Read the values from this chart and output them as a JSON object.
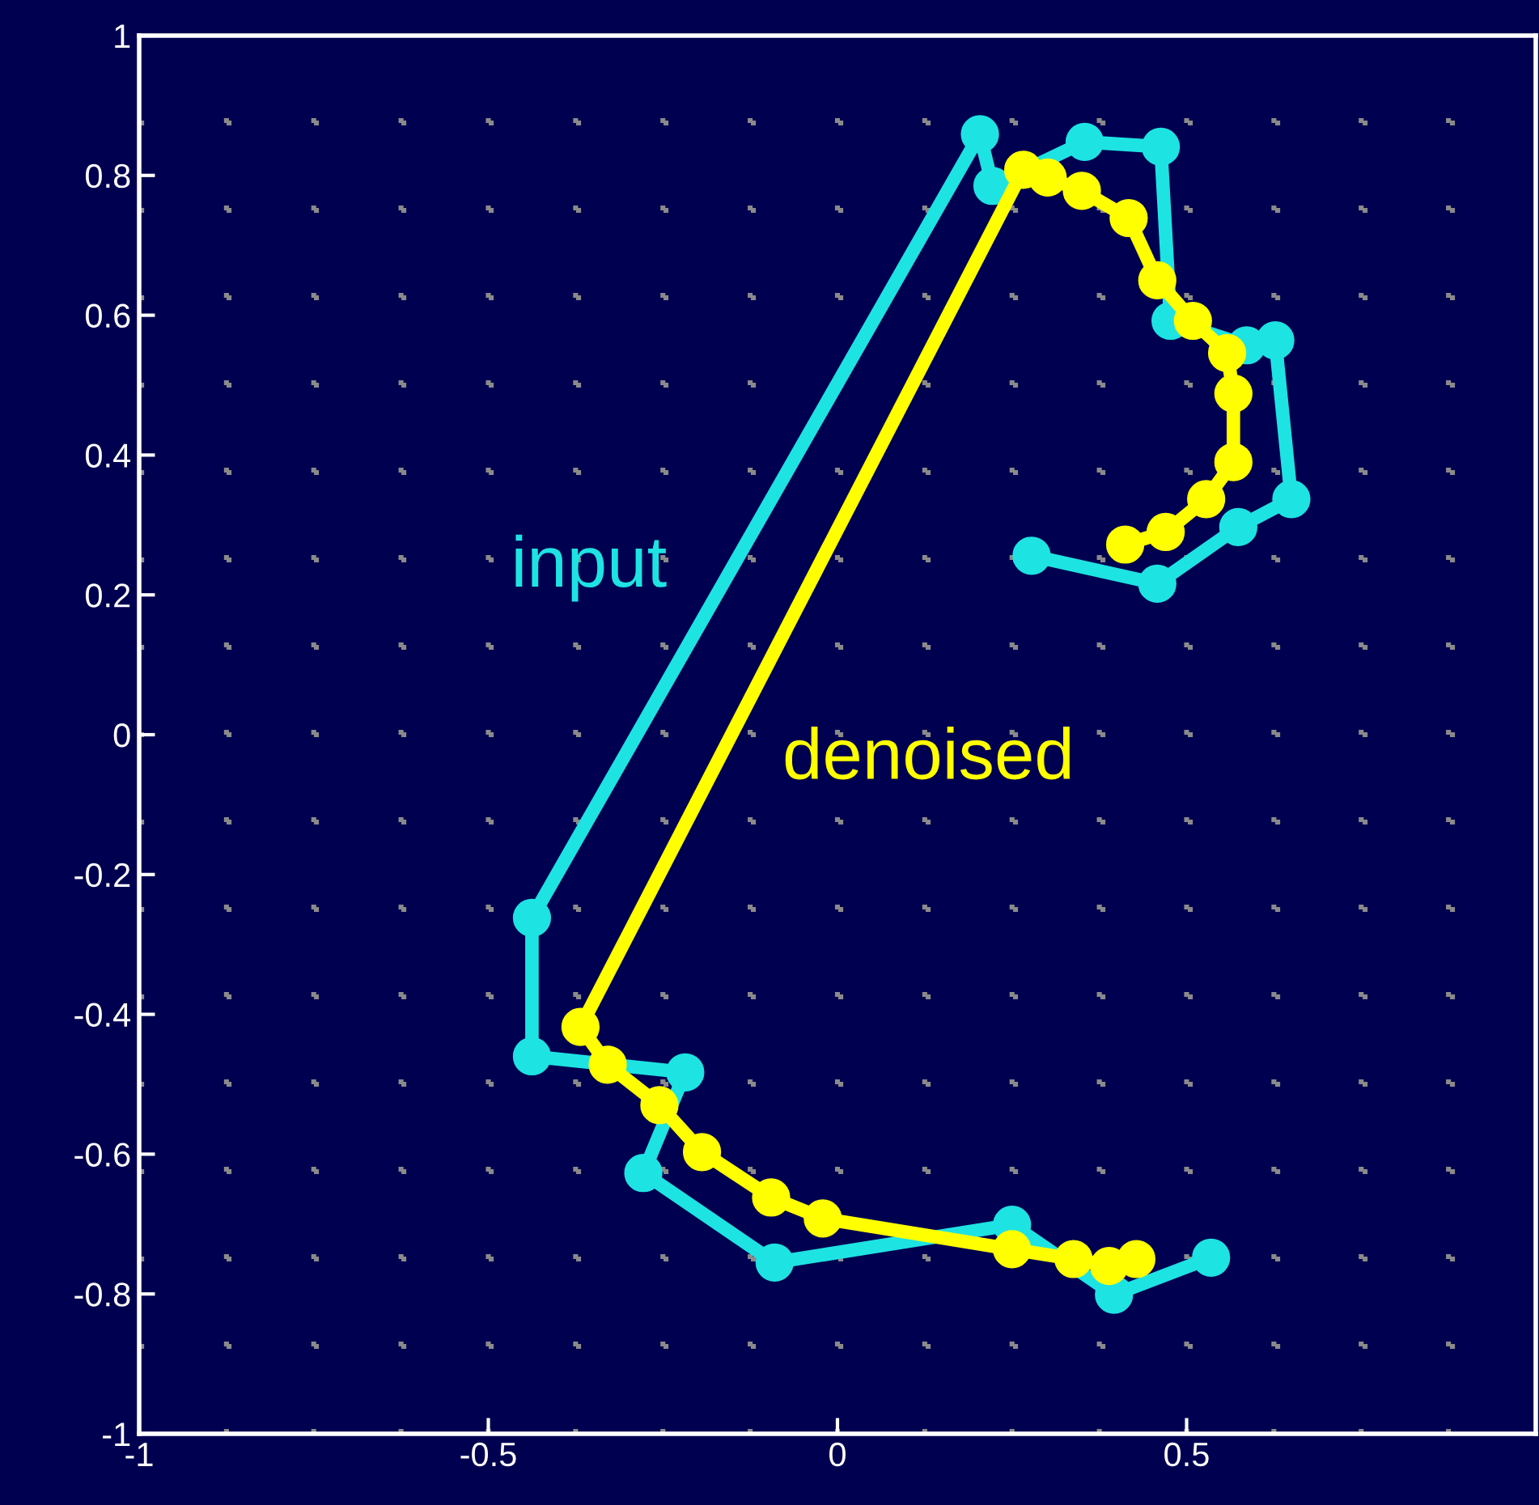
{
  "chart_data": {
    "type": "line",
    "marker": "circle",
    "line_style": "solid",
    "grid": true,
    "xlim": [
      -1,
      1
    ],
    "ylim": [
      -1,
      1
    ],
    "xticks": [
      -1,
      {
        "value": -0.875,
        "label": null
      },
      {
        "value": -0.75,
        "label": null
      },
      {
        "value": -0.625,
        "label": null
      },
      -0.5,
      {
        "value": -0.375,
        "label": null
      },
      {
        "value": -0.25,
        "label": null
      },
      {
        "value": -0.125,
        "label": null
      },
      0,
      {
        "value": 0.125,
        "label": null
      },
      {
        "value": 0.25,
        "label": null
      },
      {
        "value": 0.375,
        "label": null
      },
      0.5,
      {
        "value": 0.625,
        "label": null
      },
      {
        "value": 0.75,
        "label": null
      },
      {
        "value": 0.875,
        "label": null
      }
    ],
    "yticks": [
      -1,
      {
        "value": -0.875,
        "label": null
      },
      -0.8,
      {
        "value": -0.75,
        "label": null
      },
      {
        "value": -0.625,
        "label": null
      },
      -0.6,
      {
        "value": -0.5,
        "label": null
      },
      -0.4,
      {
        "value": -0.375,
        "label": null
      },
      {
        "value": -0.25,
        "label": null
      },
      -0.2,
      {
        "value": -0.125,
        "label": null
      },
      0,
      {
        "value": 0.125,
        "label": null
      },
      0.2,
      {
        "value": 0.25,
        "label": null
      },
      {
        "value": 0.375,
        "label": null
      },
      0.4,
      {
        "value": 0.5,
        "label": null
      },
      0.6,
      {
        "value": 0.625,
        "label": null
      },
      {
        "value": 0.75,
        "label": null
      },
      0.8,
      {
        "value": 0.875,
        "label": null
      },
      1
    ],
    "series": [
      {
        "name": "input",
        "color": "#1ee3e3",
        "x": [
          0.535,
          0.396,
          0.25,
          -0.09,
          -0.278,
          -0.218,
          -0.4375,
          -0.4375,
          0.204,
          0.222,
          0.354,
          0.463,
          0.477,
          0.586,
          0.627,
          0.65,
          0.574,
          0.458,
          0.278
        ],
        "values": [
          -0.748,
          -0.801,
          -0.701,
          -0.755,
          -0.627,
          -0.483,
          -0.46,
          -0.262,
          0.859,
          0.785,
          0.848,
          0.841,
          0.592,
          0.557,
          0.564,
          0.337,
          0.297,
          0.216,
          0.256
        ]
      },
      {
        "name": "denoised",
        "color": "#ffff00",
        "x": [
          0.428,
          0.389,
          0.338,
          0.25,
          -0.021,
          -0.095,
          -0.194,
          -0.255,
          -0.329,
          -0.368,
          0.266,
          0.301,
          0.35,
          0.417,
          0.458,
          0.509,
          0.558,
          0.567,
          0.567,
          0.528,
          0.47,
          0.412
        ],
        "values": [
          -0.75,
          -0.76,
          -0.75,
          -0.736,
          -0.692,
          -0.662,
          -0.597,
          -0.53,
          -0.472,
          -0.418,
          0.808,
          0.797,
          0.778,
          0.739,
          0.65,
          0.592,
          0.546,
          0.488,
          0.39,
          0.337,
          0.29,
          0.272
        ]
      }
    ]
  }
}
